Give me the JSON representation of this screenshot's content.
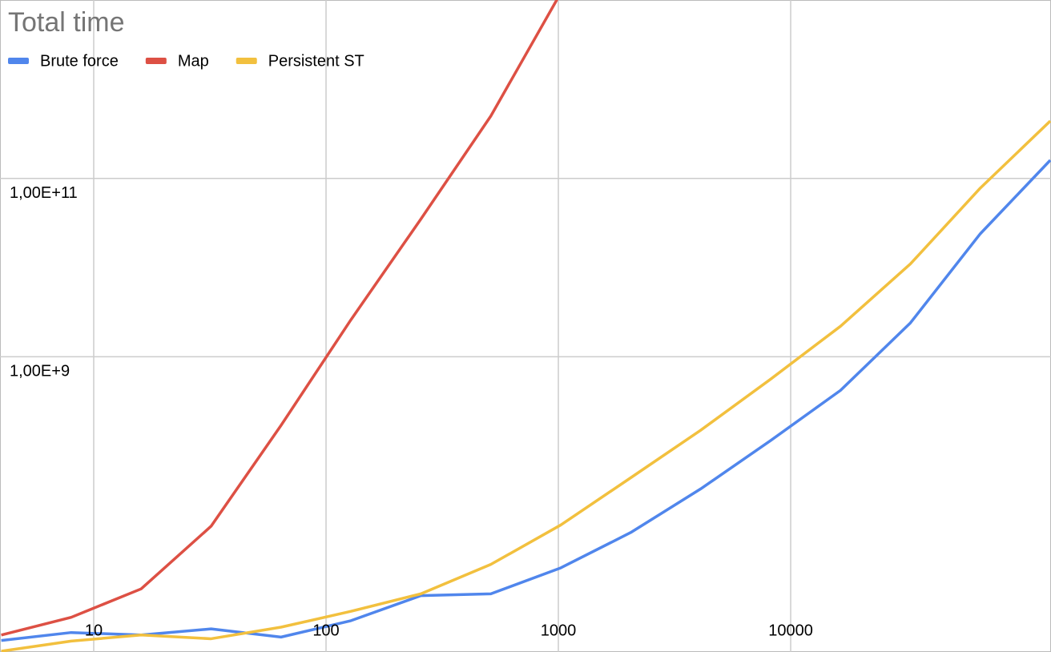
{
  "chart_data": {
    "type": "line",
    "title": "Total time",
    "x": [
      4,
      8,
      16,
      32,
      64,
      128,
      256,
      512,
      1024,
      2048,
      4096,
      8192,
      16384,
      32768,
      65536,
      131072
    ],
    "series": [
      {
        "name": "Brute force",
        "color": "#5086ec",
        "values": [
          660000,
          810000,
          760000,
          890000,
          720000,
          1100000,
          2100000,
          2200000,
          4300000,
          10700000,
          33000000,
          115000000,
          420000000,
          2400000000,
          24000000000,
          160000000000
        ]
      },
      {
        "name": "Map",
        "color": "#dd5044",
        "values": [
          760000,
          1200000,
          2500000,
          12600000,
          170000000,
          2600000000,
          35000000000,
          500000000000,
          12000000000000,
          null,
          null,
          null,
          null,
          null,
          null,
          null
        ]
      },
      {
        "name": "Persistent ST",
        "color": "#f2c03e",
        "values": [
          500000,
          650000,
          760000,
          690000,
          930000,
          1400000,
          2200000,
          4700000,
          13000000,
          44000000,
          150000000,
          560000000,
          2200000000,
          11000000000,
          78000000000,
          440000000000
        ]
      }
    ],
    "xlog": true,
    "ylog": true,
    "xlim": [
      3.95,
      132000
    ],
    "ylim": [
      490000,
      10000000000000
    ],
    "xticks": [
      10,
      100,
      1000,
      10000
    ],
    "yticks": [
      {
        "value": 100000000000,
        "label": "1,00E+11"
      },
      {
        "value": 1000000000,
        "label": "1,00E+9"
      }
    ],
    "grid": true,
    "legend": "top"
  }
}
